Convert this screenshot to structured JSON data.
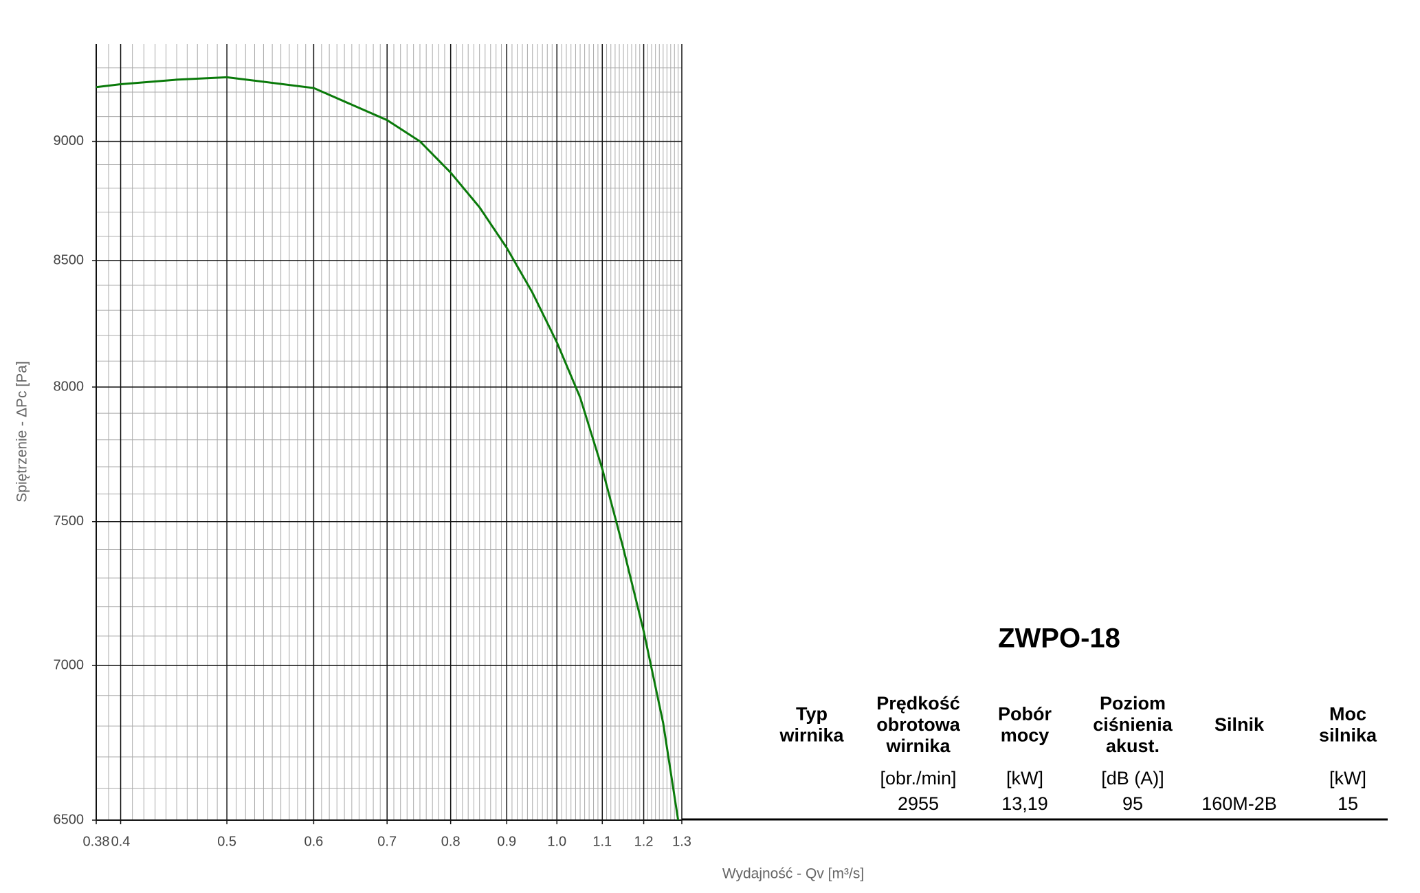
{
  "chart_data": {
    "type": "line",
    "y_label": "Spiętrzenie - ΔPc [Pa]",
    "x_label": "Wydajność - Qv [m³/s]",
    "x": [
      0.38,
      0.4,
      0.45,
      0.5,
      0.6,
      0.7,
      0.75,
      0.8,
      0.85,
      0.9,
      0.95,
      1.0,
      1.05,
      1.1,
      1.15,
      1.2,
      1.25,
      1.29
    ],
    "series": [
      {
        "color": "#0a7a0a",
        "values": [
          9237,
          9250,
          9270,
          9281,
          9233,
          9092,
          9000,
          8866,
          8720,
          8552,
          8370,
          8173,
          7960,
          7692,
          7403,
          7116,
          6810,
          6500
        ]
      }
    ],
    "xlim": [
      0.38,
      1.3
    ],
    "ylim": [
      6500,
      9430
    ],
    "xticks": [
      0.38,
      0.4,
      0.5,
      0.6,
      0.7,
      0.8,
      0.9,
      {
        "value": 1,
        "label": "1.0"
      },
      1.1,
      1.2,
      1.3
    ],
    "yticks": [
      6500,
      7000,
      7500,
      8000,
      8500,
      9000
    ],
    "xscale": "log",
    "yscale": "log",
    "grid": true
  },
  "table": {
    "title": "ZWPO-18",
    "columns": [
      {
        "header": [
          "Typ",
          "wirnika"
        ]
      },
      {
        "header": [
          "Prędkość",
          "obrotowa",
          "wirnika"
        ],
        "unit": "[obr./min]",
        "value": "2955"
      },
      {
        "header": [
          "Pobór",
          "mocy"
        ],
        "unit": "[kW]",
        "value": "13,19"
      },
      {
        "header": [
          "Poziom",
          "ciśnienia",
          "akust."
        ],
        "unit": "[dB (A)]",
        "value": "95"
      },
      {
        "header": [
          "Silnik"
        ],
        "value": "160M-2B"
      },
      {
        "header": [
          "Moc",
          "silnika"
        ],
        "unit": "[kW]",
        "value": "15"
      }
    ]
  }
}
